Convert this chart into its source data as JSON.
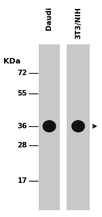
{
  "bg_color": "#ffffff",
  "lane_color": "#c8c8c8",
  "band_color": "#111111",
  "arrow_color": "#111111",
  "tick_color": "#000000",
  "label_color": "#000000",
  "fig_width": 1.5,
  "fig_height": 3.18,
  "dpi": 100,
  "kda_label": "KDa",
  "mw_markers": [
    72,
    55,
    36,
    28,
    17
  ],
  "col_labels": [
    "Daudi",
    "3T3/NIH"
  ],
  "fontsize_mw": 7.5,
  "fontsize_kda": 8.0,
  "fontsize_col": 7.5
}
